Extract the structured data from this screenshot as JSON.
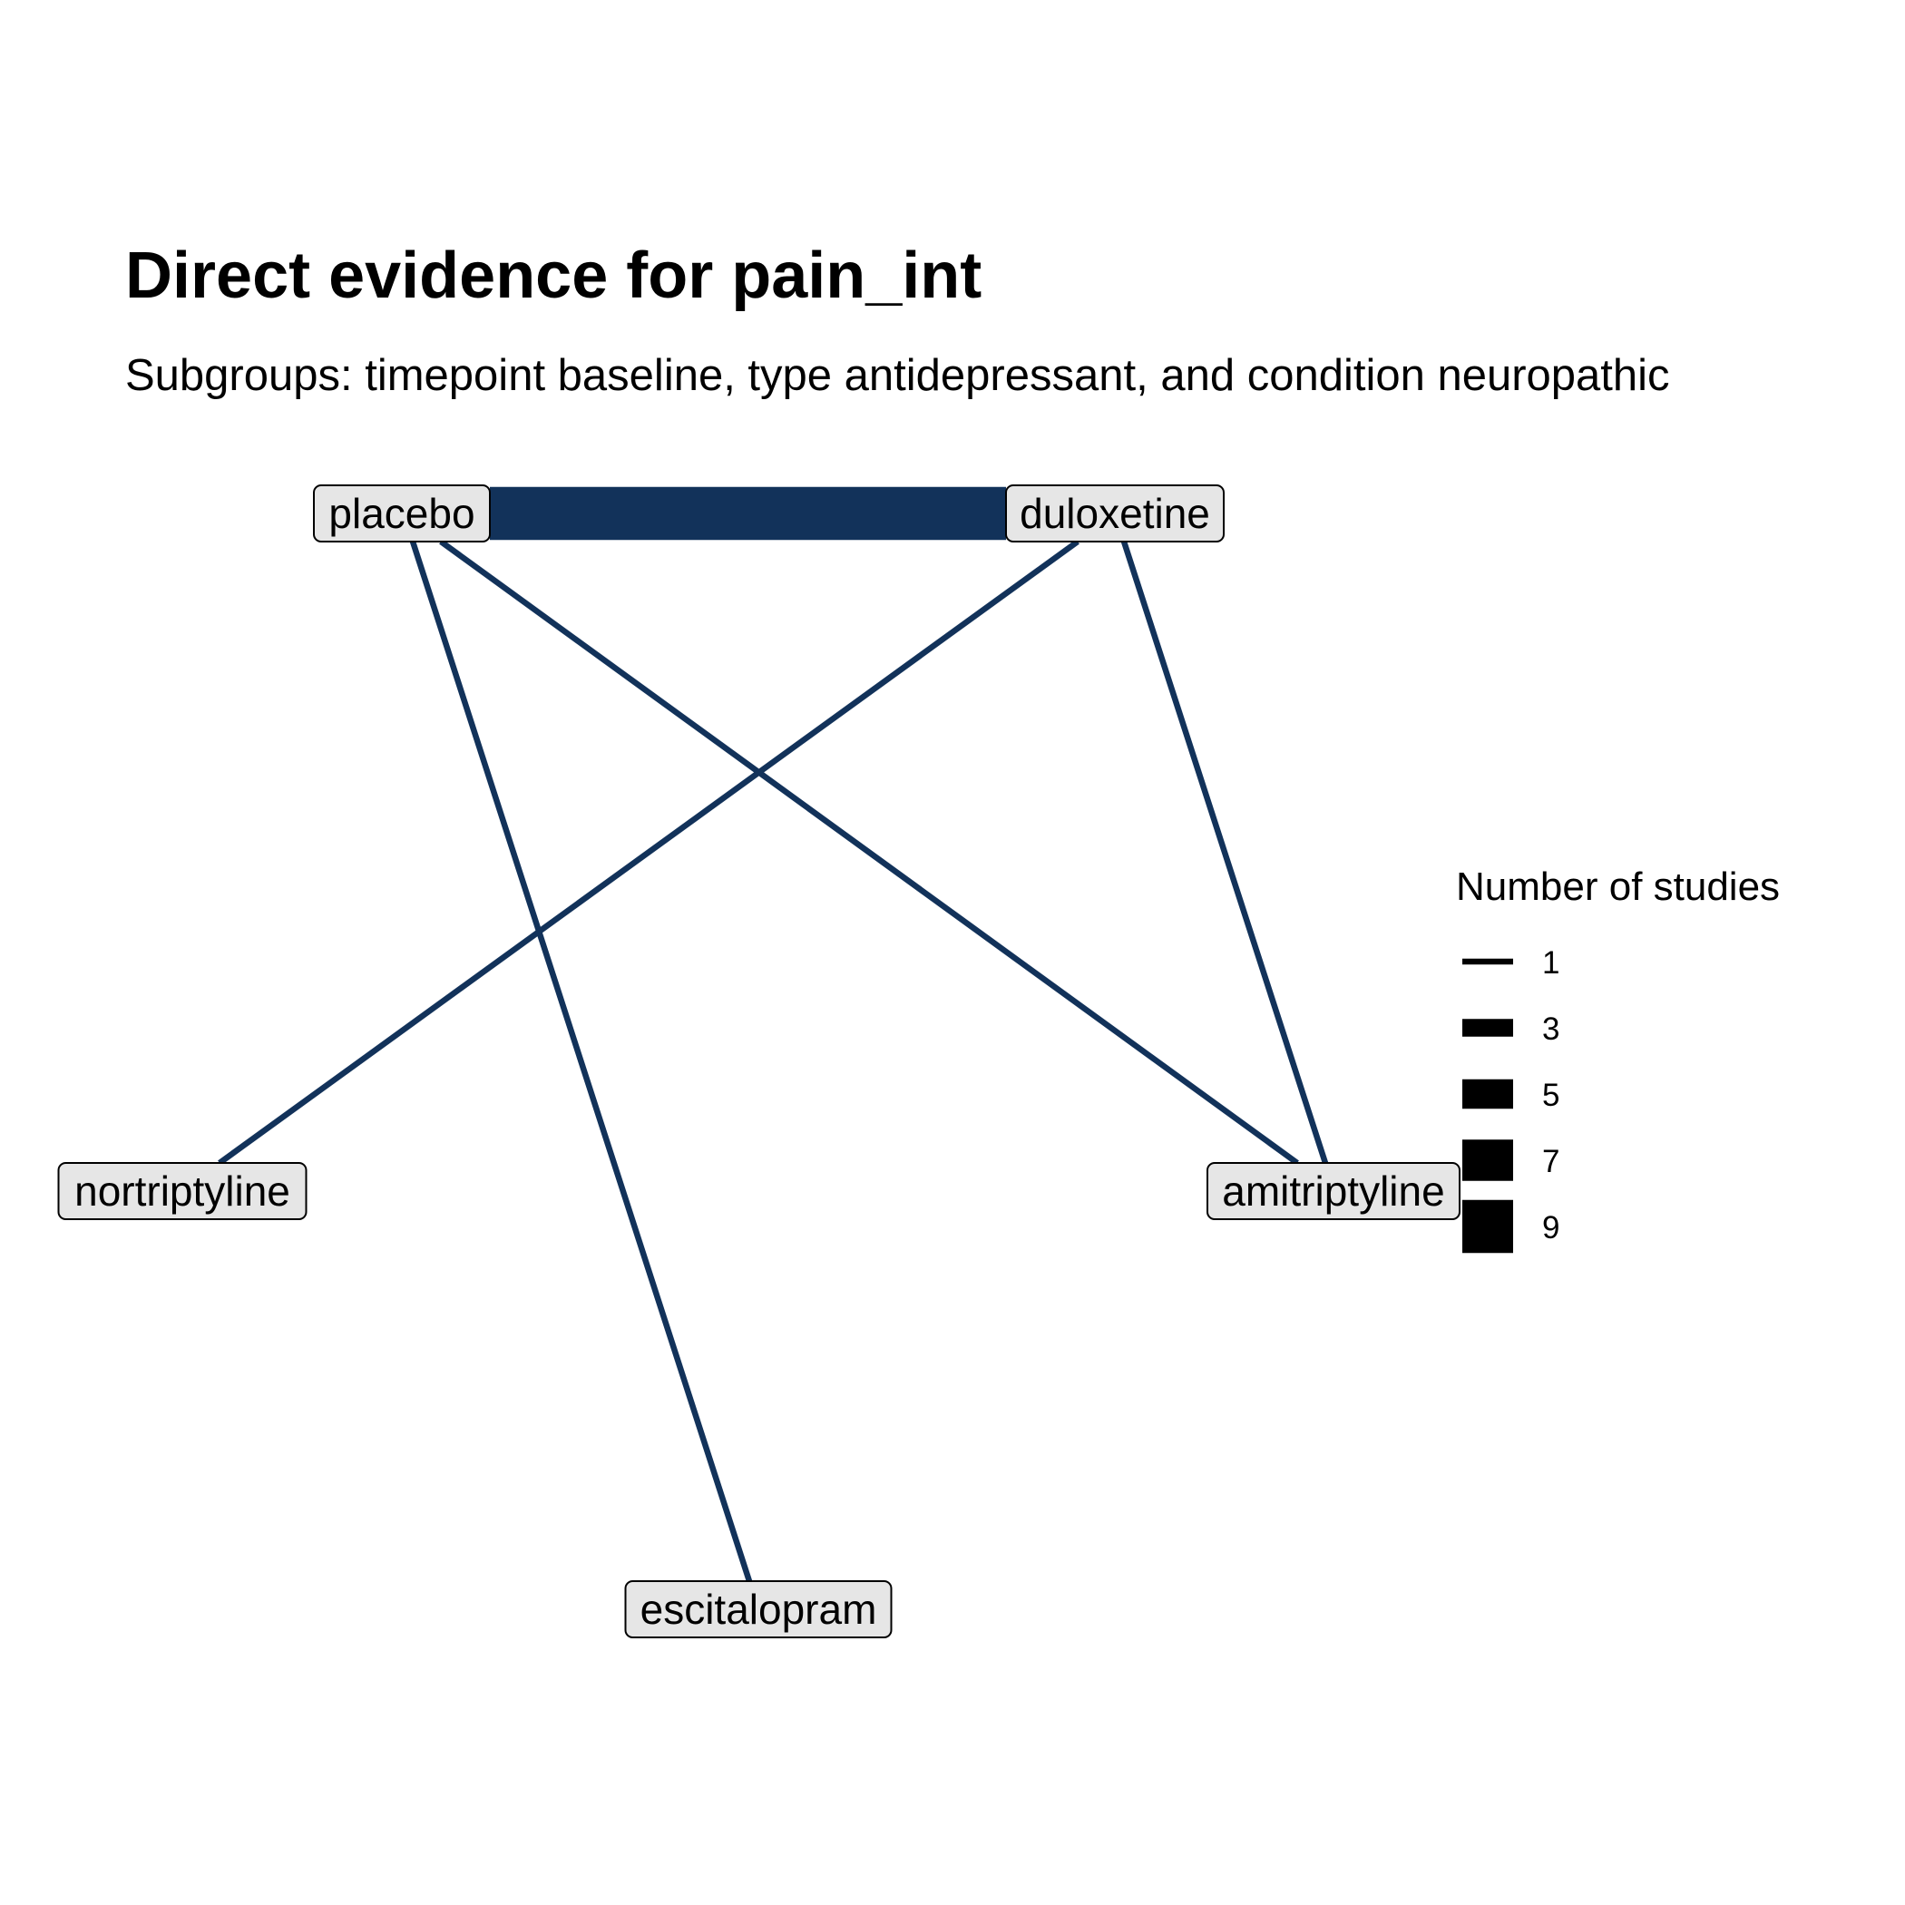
{
  "title": "Direct evidence for pain_int",
  "subtitle": "Subgroups: timepoint baseline, type antidepressant, and condition neuropathic",
  "network": {
    "edge_color": "#12325a",
    "nodes": [
      {
        "id": "placebo",
        "label": "placebo"
      },
      {
        "id": "duloxetine",
        "label": "duloxetine"
      },
      {
        "id": "nortriptyline",
        "label": "nortriptyline"
      },
      {
        "id": "amitriptyline",
        "label": "amitriptyline"
      },
      {
        "id": "escitalopram",
        "label": "escitalopram"
      }
    ],
    "edges": [
      {
        "from": "placebo",
        "to": "duloxetine",
        "studies": 9
      },
      {
        "from": "placebo",
        "to": "escitalopram",
        "studies": 1
      },
      {
        "from": "placebo",
        "to": "amitriptyline",
        "studies": 1
      },
      {
        "from": "duloxetine",
        "to": "nortriptyline",
        "studies": 1
      },
      {
        "from": "duloxetine",
        "to": "amitriptyline",
        "studies": 1
      }
    ]
  },
  "legend": {
    "title": "Number of studies",
    "items": [
      {
        "label": "1",
        "value": 1
      },
      {
        "label": "3",
        "value": 3
      },
      {
        "label": "5",
        "value": 5
      },
      {
        "label": "7",
        "value": 7
      },
      {
        "label": "9",
        "value": 9
      }
    ]
  }
}
